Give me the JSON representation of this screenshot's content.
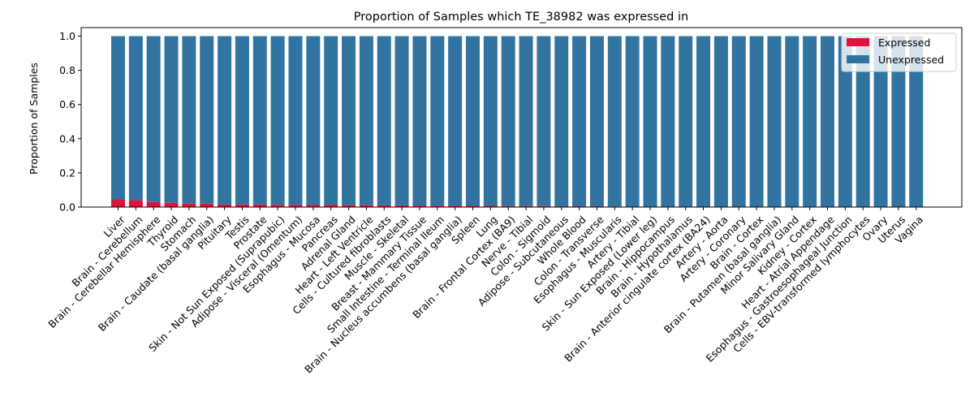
{
  "chart_data": {
    "type": "bar",
    "stacked": true,
    "title": "Proportion of Samples which TE_38982 was expressed in",
    "xlabel": "",
    "ylabel": "Proportion of Samples",
    "ylim": [
      0,
      1.05
    ],
    "yticks": [
      "0.0",
      "0.2",
      "0.4",
      "0.6",
      "0.8",
      "1.0"
    ],
    "ytick_values": [
      0,
      0.2,
      0.4,
      0.6,
      0.8,
      1.0
    ],
    "legend_position": "top-right",
    "grid": false,
    "categories": [
      "Liver",
      "Brain - Cerebellum",
      "Brain - Cerebellar Hemisphere",
      "Thyroid",
      "Stomach",
      "Brain - Caudate (basal ganglia)",
      "Pituitary",
      "Testis",
      "Prostate",
      "Skin - Not Sun Exposed (Suprapubic)",
      "Adipose - Visceral (Omentum)",
      "Esophagus - Mucosa",
      "Pancreas",
      "Adrenal Gland",
      "Heart - Left Ventricle",
      "Cells - Cultured fibroblasts",
      "Muscle - Skeletal",
      "Breast - Mammary Tissue",
      "Small Intestine - Terminal Ileum",
      "Brain - Nucleus accumbens (basal ganglia)",
      "Spleen",
      "Lung",
      "Brain - Frontal Cortex (BA9)",
      "Nerve - Tibial",
      "Colon - Sigmoid",
      "Adipose - Subcutaneous",
      "Whole Blood",
      "Colon - Transverse",
      "Esophagus - Muscularis",
      "Artery - Tibial",
      "Skin - Sun Exposed (Lower leg)",
      "Brain - Hippocampus",
      "Brain - Hypothalamus",
      "Brain - Anterior cingulate cortex (BA24)",
      "Artery - Aorta",
      "Artery - Coronary",
      "Brain - Cortex",
      "Brain - Putamen (basal ganglia)",
      "Minor Salivary Gland",
      "Kidney - Cortex",
      "Heart - Atrial Appendage",
      "Esophagus - Gastroesophageal Junction",
      "Cells - EBV-transformed lymphocytes",
      "Ovary",
      "Uterus",
      "Vagina"
    ],
    "series": [
      {
        "name": "Expressed",
        "color": "#dc143c",
        "values": [
          0.045,
          0.04,
          0.03,
          0.025,
          0.02,
          0.02,
          0.015,
          0.015,
          0.015,
          0.013,
          0.013,
          0.012,
          0.012,
          0.011,
          0.011,
          0.01,
          0.01,
          0.009,
          0.008,
          0.008,
          0.007,
          0.007,
          0.006,
          0.006,
          0.006,
          0.005,
          0.005,
          0.005,
          0.004,
          0,
          0,
          0,
          0,
          0,
          0,
          0,
          0,
          0,
          0,
          0,
          0,
          0,
          0,
          0,
          0,
          0
        ]
      },
      {
        "name": "Unexpressed",
        "color": "#3274a1",
        "values": [
          0.955,
          0.96,
          0.97,
          0.975,
          0.98,
          0.98,
          0.985,
          0.985,
          0.985,
          0.987,
          0.987,
          0.988,
          0.988,
          0.989,
          0.989,
          0.99,
          0.99,
          0.991,
          0.992,
          0.992,
          0.993,
          0.993,
          0.994,
          0.994,
          0.994,
          0.995,
          0.995,
          0.995,
          0.996,
          1,
          1,
          1,
          1,
          1,
          1,
          1,
          1,
          1,
          1,
          1,
          1,
          1,
          1,
          1,
          1,
          1
        ]
      }
    ]
  }
}
